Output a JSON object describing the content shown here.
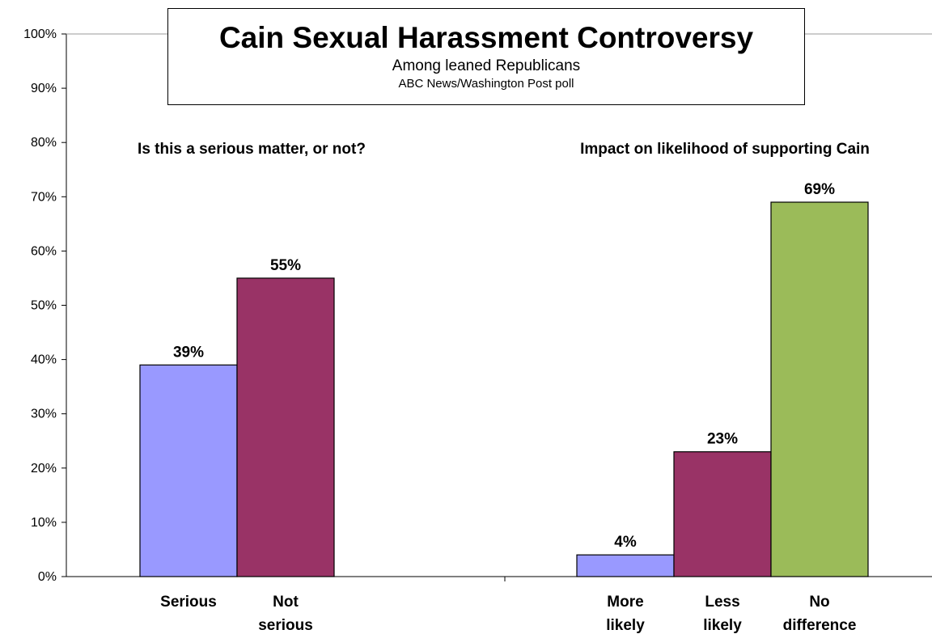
{
  "chart_data": {
    "type": "bar",
    "title": "Cain Sexual Harassment Controversy",
    "subtitle": "Among leaned Republicans",
    "source": "ABC News/Washington Post poll",
    "ylim": [
      0,
      100
    ],
    "y_ticks": [
      "0%",
      "10%",
      "20%",
      "30%",
      "40%",
      "50%",
      "60%",
      "70%",
      "80%",
      "90%",
      "100%"
    ],
    "grid": false,
    "panels": [
      {
        "title": "Is this a serious matter, or not?",
        "categories": [
          [
            "Serious"
          ],
          [
            "Not",
            "serious"
          ]
        ],
        "values": [
          39,
          55
        ],
        "value_labels": [
          "39%",
          "55%"
        ],
        "colors": [
          "#9999ff",
          "#993366"
        ]
      },
      {
        "title": "Impact on likelihood of supporting Cain",
        "categories": [
          [
            "More",
            "likely"
          ],
          [
            "Less",
            "likely"
          ],
          [
            "No",
            "difference"
          ]
        ],
        "values": [
          4,
          23,
          69
        ],
        "value_labels": [
          "4%",
          "23%",
          "69%"
        ],
        "colors": [
          "#9999ff",
          "#993366",
          "#9bbb59"
        ]
      }
    ]
  }
}
